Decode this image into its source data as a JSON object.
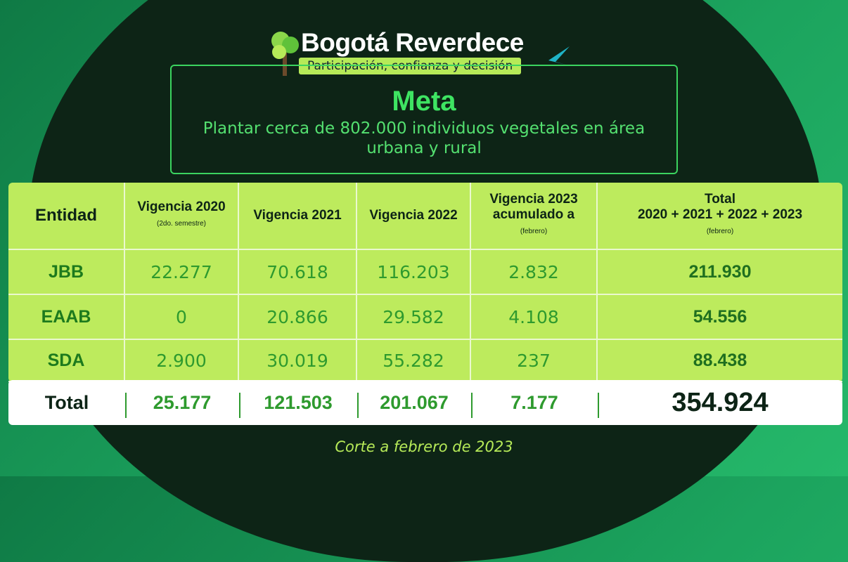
{
  "header": {
    "title": "Bogotá Reverdece",
    "subtitle": "Participación, confianza y decisión"
  },
  "goal": {
    "title": "Meta",
    "text": "Plantar cerca de 802.000 individuos vegetales en área urbana y rural"
  },
  "table": {
    "columns": [
      {
        "label": "Entidad"
      },
      {
        "label": "Vigencia 2020",
        "note": "(2do. semestre)"
      },
      {
        "label": "Vigencia 2021"
      },
      {
        "label": "Vigencia 2022"
      },
      {
        "label": "Vigencia 2023 acumulado a",
        "note": "(febrero)"
      },
      {
        "label": "Total",
        "sublabel": "2020 + 2021 + 2022 + 2023",
        "note": "(febrero)"
      }
    ],
    "rows": [
      [
        "JBB",
        "22.277",
        "70.618",
        "116.203",
        "2.832",
        "211.930"
      ],
      [
        "EAAB",
        "0",
        "20.866",
        "29.582",
        "4.108",
        "54.556"
      ],
      [
        "SDA",
        "2.900",
        "30.019",
        "55.282",
        "237",
        "88.438"
      ]
    ],
    "total_row": [
      "Total",
      "25.177",
      "121.503",
      "201.067",
      "7.177",
      "354.924"
    ]
  },
  "footer": "Corte a febrero de 2023"
}
